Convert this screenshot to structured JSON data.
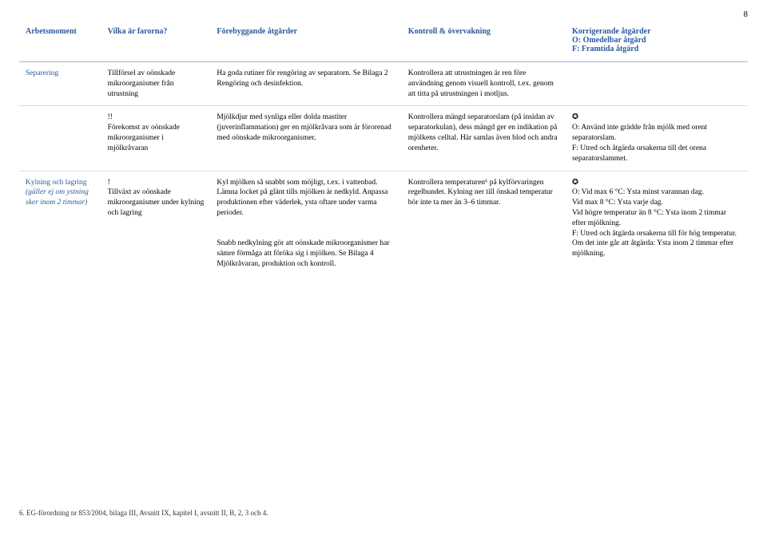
{
  "page_number": "8",
  "headers": {
    "c1": "Arbetsmoment",
    "c2": "Vilka är farorna?",
    "c3": "Förebyggande åtgärder",
    "c4": "Kontroll & övervakning",
    "c5_main": "Korrigerande åtgärder",
    "c5_sub1": "O: Omedelbar åtgärd",
    "c5_sub2": "F: Framtida åtgärd"
  },
  "rows": [
    {
      "moment": "Separering",
      "moment_italic": "",
      "faror": "Tillförsel av oönskade mikroorganismer från utrustning",
      "forebyggande": "Ha goda rutiner för rengöring av separatorn. Se Bilaga 2 Rengöring och desinfektion.",
      "kontroll": "Kontrollera att utrustningen är ren före användning genom visuell kontroll, t.ex. genom att titta på utrustningen i motljus.",
      "korrigerande": ""
    },
    {
      "moment": "",
      "moment_italic": "",
      "faror": "!!\nFörekomst av oönskade mikroorganismer i mjölkråvaran",
      "forebyggande": "Mjölkdjur med synliga eller dolda mastiter (juverinflammation) ger en mjölkråvara som är förorenad med oönskade mikroorganismer.",
      "kontroll": "Kontrollera mängd separatorslam (på insidan av separatorkulan), dess mängd ger en indikation på mjölkens celltal. Här samlas även blod och andra orenheter.",
      "korrigerande": "✪\nO: Använd inte grädde från mjölk med orent separatorslam.\nF: Utred och åtgärda orsakerna till det orena separatorslammet."
    },
    {
      "moment": "Kylning och lagring",
      "moment_italic": "(gäller ej om ystning sker inom 2 timmar)",
      "faror": "!\nTillväxt av oönskade mikroorganismer under kylning och lagring",
      "forebyggande": "Kyl mjölken så snabbt som möjligt, t.ex. i vattenbad. Lämna locket på glänt tills mjölken är nedkyld. Anpassa produktionen efter väderlek, ysta oftare under varma perioder.\n\nSnabb nedkylning gör att oönskade mikroorganismer har sämre förmåga att föröka sig i mjölken. Se Bilaga 4 Mjölkråvaran, produktion och kontroll.",
      "kontroll": "Kontrollera temperaturen⁶ på kylförvaringen regelbundet. Kylning ner till önskad temperatur bör inte ta mer än 3–6 timmar.",
      "korrigerande": "✪\nO: Vid max 6 °C: Ysta minst varannan dag.\nVid max 8 °C: Ysta varje dag.\nVid högre temperatur än 8 °C: Ysta inom 2 timmar efter mjölkning.\nF: Utred och åtgärda orsakerna till för hög temperatur. Om det inte går att åtgärda: Ysta inom 2 timmar efter mjölkning."
    }
  ],
  "footnote": "6. EG-förordning nr 853/2004, bilaga III, Avsnitt IX, kapitel I, avsnitt II, B, 2, 3 och 4."
}
